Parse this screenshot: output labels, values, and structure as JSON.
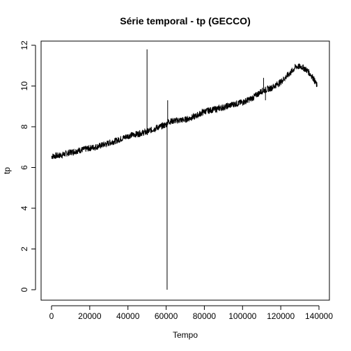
{
  "chart_data": {
    "type": "line",
    "title": "Série temporal - tp (GECCO)",
    "xlabel": "Tempo",
    "ylabel": "tp",
    "xlim": [
      0,
      140000
    ],
    "ylim": [
      0,
      12
    ],
    "x_ticks": [
      0,
      20000,
      40000,
      60000,
      80000,
      100000,
      120000,
      140000
    ],
    "y_ticks": [
      0,
      2,
      4,
      6,
      8,
      10,
      12
    ],
    "x_tick_labels": [
      "0",
      "20000",
      "40000",
      "60000",
      "80000",
      "100000",
      "120000",
      "140000"
    ],
    "y_tick_labels": [
      "0",
      "2",
      "4",
      "6",
      "8",
      "10",
      "12"
    ],
    "series": [
      {
        "values_x": [
          0,
          5000,
          10000,
          15000,
          20000,
          25000,
          30000,
          35000,
          40000,
          45000,
          50000,
          55000,
          60000,
          61000,
          65000,
          70000,
          75000,
          80000,
          85000,
          90000,
          95000,
          100000,
          105000,
          110000,
          115000,
          120000,
          125000,
          128000,
          131000,
          134000,
          137000,
          139000
        ],
        "values_y": [
          6.55,
          6.6,
          6.75,
          6.85,
          6.95,
          7.05,
          7.2,
          7.35,
          7.55,
          7.65,
          7.75,
          7.95,
          8.1,
          8.25,
          8.3,
          8.35,
          8.5,
          8.75,
          8.85,
          8.95,
          9.1,
          9.2,
          9.4,
          9.75,
          9.9,
          10.2,
          10.65,
          10.95,
          10.95,
          10.75,
          10.4,
          10.0
        ],
        "color": "#000000"
      }
    ],
    "spikes": [
      {
        "x": 50000,
        "y": 11.8
      },
      {
        "x": 60500,
        "y": 0.0
      },
      {
        "x": 60800,
        "y": 9.3
      },
      {
        "x": 111000,
        "y": 10.4
      },
      {
        "x": 112000,
        "y": 9.3
      }
    ],
    "grid": false,
    "legend": "none"
  }
}
